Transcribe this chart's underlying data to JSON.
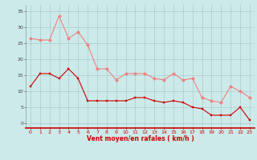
{
  "x": [
    0,
    1,
    2,
    3,
    4,
    5,
    6,
    7,
    8,
    9,
    10,
    11,
    12,
    13,
    14,
    15,
    16,
    17,
    18,
    19,
    20,
    21,
    22,
    23
  ],
  "rafales": [
    26.5,
    26,
    26,
    33.5,
    26.5,
    28.5,
    24.5,
    17,
    17,
    13.5,
    15.5,
    15.5,
    15.5,
    14,
    13.5,
    15.5,
    13.5,
    14,
    8,
    7,
    6.5,
    11.5,
    10,
    8
  ],
  "moyen": [
    11.5,
    15.5,
    15.5,
    14,
    17,
    14,
    7,
    7,
    7,
    7,
    7,
    8,
    8,
    7,
    6.5,
    7,
    6.5,
    5,
    4.5,
    2.5,
    2.5,
    2.5,
    5,
    1
  ],
  "color_rafales": "#f08080",
  "color_moyen": "#cc0000",
  "bg_color": "#cceaea",
  "grid_color": "#aacccc",
  "xlabel": "Vent moyen/en rafales ( km/h )",
  "xlabel_color": "#cc0000",
  "yticks": [
    0,
    5,
    10,
    15,
    20,
    25,
    30,
    35
  ],
  "xticks": [
    0,
    1,
    2,
    3,
    4,
    5,
    6,
    7,
    8,
    9,
    10,
    11,
    12,
    13,
    14,
    15,
    16,
    17,
    18,
    19,
    20,
    21,
    22,
    23
  ],
  "ylim": [
    -1.5,
    37
  ],
  "xlim": [
    -0.5,
    23.5
  ]
}
